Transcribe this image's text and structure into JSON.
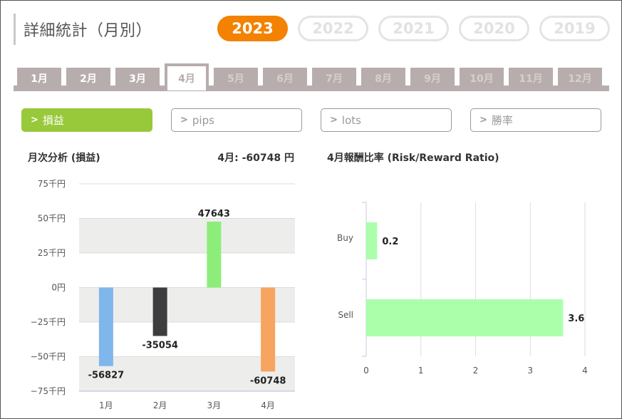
{
  "header": {
    "title": "詳細統計（月別）"
  },
  "years": [
    {
      "label": "2023",
      "active": true
    },
    {
      "label": "2022",
      "active": false
    },
    {
      "label": "2021",
      "active": false
    },
    {
      "label": "2020",
      "active": false
    },
    {
      "label": "2019",
      "active": false
    }
  ],
  "months": [
    {
      "label": "1月",
      "state": "available"
    },
    {
      "label": "2月",
      "state": "available"
    },
    {
      "label": "3月",
      "state": "available"
    },
    {
      "label": "4月",
      "state": "active"
    },
    {
      "label": "5月",
      "state": "future"
    },
    {
      "label": "6月",
      "state": "future"
    },
    {
      "label": "7月",
      "state": "future"
    },
    {
      "label": "8月",
      "state": "future"
    },
    {
      "label": "9月",
      "state": "future"
    },
    {
      "label": "10月",
      "state": "future"
    },
    {
      "label": "11月",
      "state": "future"
    },
    {
      "label": "12月",
      "state": "future"
    }
  ],
  "filters": [
    {
      "label": "損益",
      "active": true
    },
    {
      "label": "pips",
      "active": false
    },
    {
      "label": "lots",
      "active": false
    },
    {
      "label": "勝率",
      "active": false
    }
  ],
  "colors": {
    "accent": "#f28200",
    "filter_active": "#97c93a",
    "month_tab": "#b7adac"
  },
  "chart_data": [
    {
      "type": "bar",
      "title": "月次分析 (損益)",
      "summary": "4月:  -60748 円",
      "categories": [
        "1月",
        "2月",
        "3月",
        "4月"
      ],
      "values": [
        -56827,
        -35054,
        47643,
        -60748
      ],
      "value_labels": [
        "-56827",
        "-35054",
        "47643",
        "-60748"
      ],
      "colors": [
        "#7fb6ec",
        "#3d3d3f",
        "#8ded7b",
        "#f6a45f"
      ],
      "ylim": [
        -75000,
        75000
      ],
      "yticks": [
        75000,
        50000,
        25000,
        0,
        -25000,
        -50000,
        -75000
      ],
      "ytick_labels": [
        "75千円",
        "50千円",
        "25千円",
        "0円",
        "−25千円",
        "−50千円",
        "−75千円"
      ],
      "grid": "horizontal bands"
    },
    {
      "type": "bar",
      "orientation": "horizontal",
      "title": "4月報酬比率 (Risk/Reward Ratio)",
      "categories": [
        "Buy",
        "Sell"
      ],
      "values": [
        0.2,
        3.6
      ],
      "value_labels": [
        "0.2",
        "3.6"
      ],
      "color": "#abffab",
      "xlim": [
        0,
        4
      ],
      "xticks": [
        0,
        1,
        2,
        3,
        4
      ],
      "xtick_labels": [
        "0",
        "1",
        "2",
        "3",
        "4"
      ],
      "grid": "vertical"
    }
  ]
}
